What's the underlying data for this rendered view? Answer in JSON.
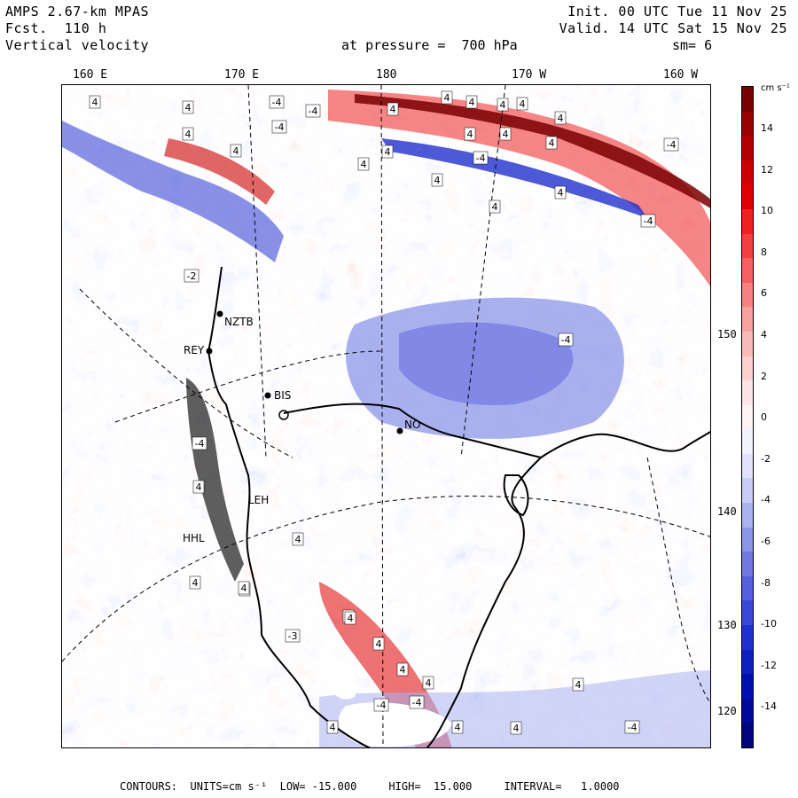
{
  "header": {
    "model": "AMPS 2.67-km MPAS",
    "forecast": "Fcst.  110 h",
    "field": "Vertical velocity",
    "init": "Init. 00 UTC Tue 11 Nov 25",
    "valid": "Valid. 14 UTC Sat 15 Nov 25",
    "pressure": "at pressure =  700 hPa",
    "smoothing": "sm= 6"
  },
  "longitude_labels": [
    "160 E",
    "170 E",
    "180",
    "170 W",
    "160 W"
  ],
  "latitude_labels": [
    "150 W",
    "140 W",
    "130 W",
    "120 W"
  ],
  "colorbar": {
    "units": "cm s⁻¹",
    "ticks": [
      "14",
      "12",
      "10",
      "8",
      "6",
      "4",
      "2",
      "0",
      "-2",
      "-4",
      "-6",
      "-8",
      "-10",
      "-12",
      "-14"
    ],
    "colors_top_to_bottom": [
      "#7a0000",
      "#990000",
      "#b30000",
      "#cc0000",
      "#e00000",
      "#ee2020",
      "#f24040",
      "#f66060",
      "#f78080",
      "#f9a0a0",
      "#fbbaba",
      "#fdd0d0",
      "#fee5e5",
      "#fff2f2",
      "#f2f2ff",
      "#e0e2ff",
      "#c8ccf8",
      "#aab2f0",
      "#8c96e8",
      "#7078e2",
      "#5560dc",
      "#3a48d6",
      "#2030cc",
      "#0f20c0",
      "#0010b0",
      "#000a98",
      "#00057e"
    ]
  },
  "stations": [
    {
      "label": "NZTB"
    },
    {
      "label": "REY"
    },
    {
      "label": "BIS"
    },
    {
      "label": "NO"
    },
    {
      "label": "LEH"
    },
    {
      "label": "HHL"
    }
  ],
  "contour_labels": [
    "4",
    "4",
    "4",
    "4",
    "4",
    "4",
    "4",
    "4",
    "4",
    "4",
    "4",
    "4",
    "4",
    "4",
    "4",
    "4",
    "4",
    "4",
    "-4",
    "-4",
    "-4",
    "-4",
    "-4",
    "-2",
    "-4",
    "-4",
    "4",
    "4",
    "-4",
    "4",
    "4",
    "-3",
    "4",
    "4",
    "4",
    "4",
    "4",
    "4",
    "4",
    "4",
    "-4",
    "4",
    "-4",
    "4",
    "-4"
  ],
  "footer": {
    "contours": "CONTOURS:  UNITS=cm s⁻¹  LOW= -15.000     HIGH=  15.000     INTERVAL=   1.0000"
  }
}
